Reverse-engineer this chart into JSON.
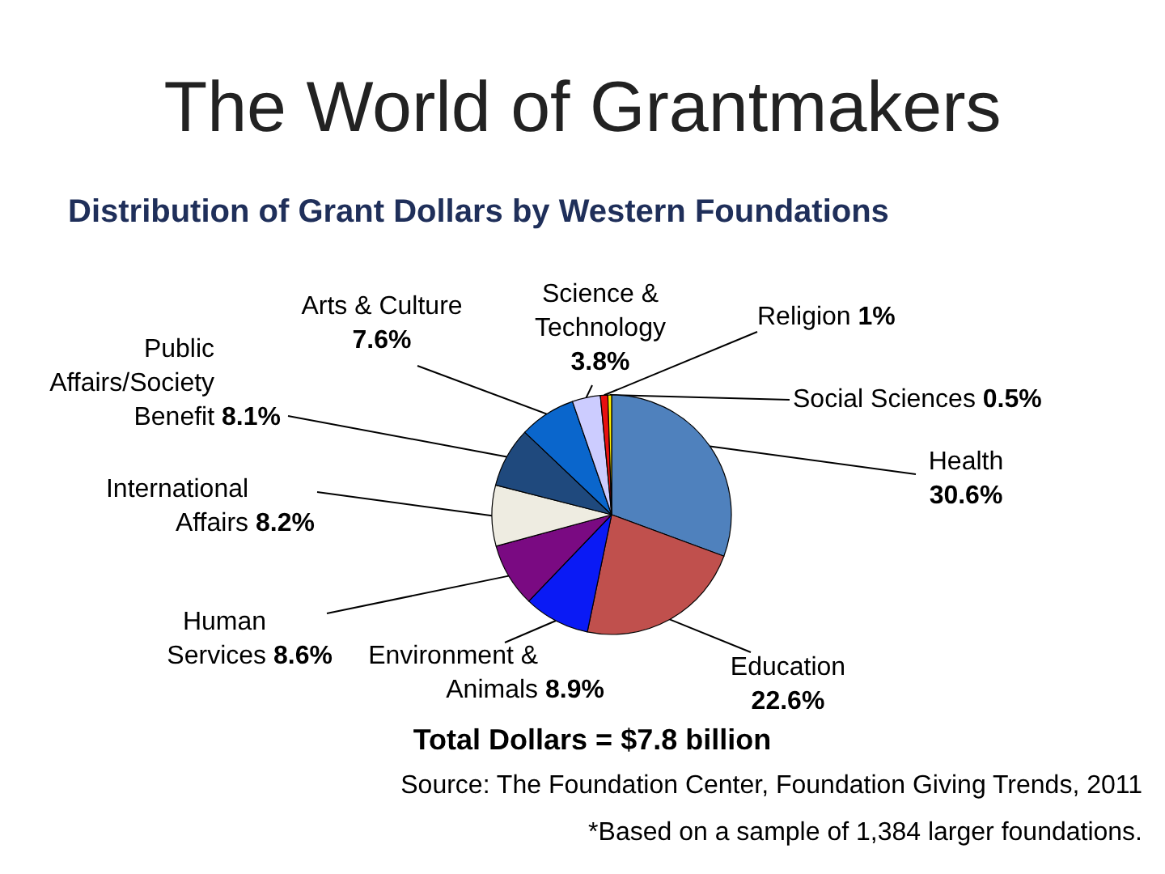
{
  "chart_data": {
    "type": "pie",
    "title": "The World of Grantmakers",
    "subtitle": "Distribution of Grant Dollars by Western Foundations",
    "categories": [
      "Health",
      "Education",
      "Environment & Animals",
      "Human Services",
      "International Affairs",
      "Public Affairs/Society Benefit",
      "Arts & Culture",
      "Science & Technology",
      "Religion",
      "Social Sciences"
    ],
    "values": [
      30.6,
      22.6,
      8.9,
      8.6,
      8.2,
      8.1,
      7.6,
      3.8,
      1,
      0.5
    ],
    "value_labels": [
      "30.6%",
      "22.6%",
      "8.9%",
      "8.6%",
      "8.2%",
      "8.1%",
      "7.6%",
      "3.8%",
      "1%",
      "0.5%"
    ],
    "colors": [
      "#4f81bd",
      "#c0504d",
      "#0a1af5",
      "#7a0a82",
      "#eeece1",
      "#1f497d",
      "#0a66cc",
      "#ccccff",
      "#e81010",
      "#ffee00"
    ],
    "annotations": [
      "Total Dollars = $7.8 billion",
      "Source: The Foundation Center, Foundation Giving Trends, 2011",
      "*Based on a sample of 1,384 larger foundations."
    ]
  }
}
